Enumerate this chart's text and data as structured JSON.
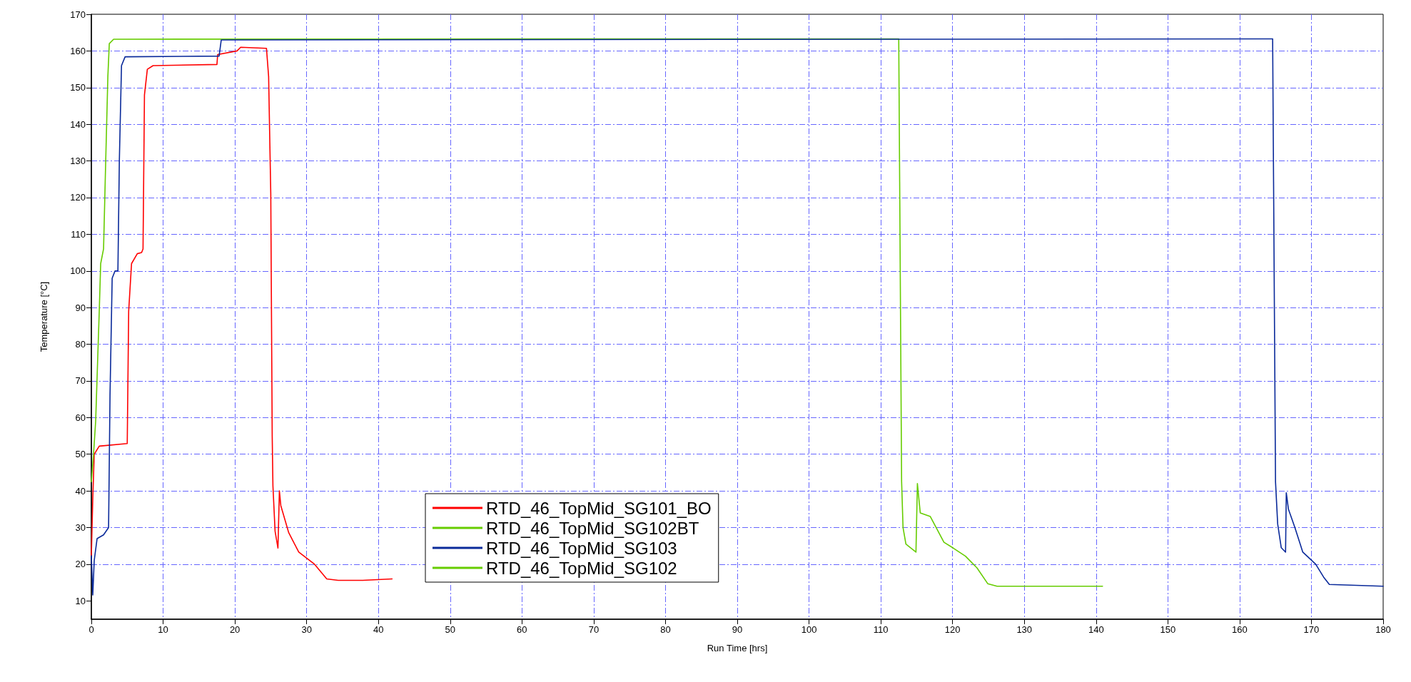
{
  "chart_data": {
    "type": "line",
    "xlabel": "Run Time [hrs]",
    "ylabel": "Temperature [°C]",
    "xlim": [
      0,
      180
    ],
    "xticks": [
      0,
      10,
      20,
      30,
      40,
      50,
      60,
      70,
      80,
      90,
      100,
      110,
      120,
      130,
      140,
      150,
      160,
      170,
      180
    ],
    "ylim": [
      5,
      170
    ],
    "yticks": [
      10,
      20,
      30,
      40,
      50,
      60,
      70,
      80,
      90,
      100,
      110,
      120,
      130,
      140,
      150,
      160,
      170
    ],
    "grid": true,
    "legend": "bottom",
    "marker": "none",
    "line_style": "solid",
    "series": [
      {
        "name": "RTD_46_TopMid_SG101_BO",
        "color": "#ff0000",
        "x": [
          0,
          0.2,
          0.4,
          1.1,
          5,
          5.2,
          5.6,
          6.4,
          7,
          7.2,
          7.4,
          7.8,
          8.6,
          17.5,
          17.6,
          20.3,
          20.8,
          24.4,
          24.7,
          25,
          25.2,
          25.3,
          25.6,
          26,
          26.2,
          26.4,
          27.5,
          28.9,
          31.1,
          32.8,
          34.4,
          37.8,
          41.9
        ],
        "values": [
          22.3,
          38,
          50,
          52.2,
          52.9,
          89,
          102,
          104.7,
          105,
          106,
          148,
          155,
          156,
          156.3,
          159,
          160,
          161,
          160.7,
          153,
          121,
          55,
          41.4,
          29,
          24.4,
          40,
          36,
          28.6,
          23.3,
          20,
          16,
          15.6,
          15.6,
          16
        ]
      },
      {
        "name": "RTD_46_TopMid_SG102BT",
        "color": "#66cc00",
        "x": [
          0,
          0.3,
          0.6,
          1.1,
          1.3,
          1.7,
          2,
          2.3,
          2.5,
          3.1,
          112.5,
          112.9,
          113.1,
          113.5,
          114.9,
          115.1,
          115.5,
          116.9,
          118.8,
          120.1,
          121.8,
          123.4,
          124.9,
          126.2,
          140.9
        ],
        "values": [
          42.5,
          50,
          59,
          89,
          102,
          106,
          130,
          153,
          162,
          163.2,
          163.3,
          42.6,
          30,
          25.5,
          23.3,
          42,
          34,
          33,
          26,
          24.4,
          22.2,
          19,
          14.7,
          14,
          14
        ]
      },
      {
        "name": "RTD_46_TopMid_SG103",
        "color": "#0a2a9a",
        "x": [
          0,
          0.2,
          0.4,
          0.8,
          1.7,
          2.4,
          2.6,
          2.9,
          3.3,
          3.7,
          3.9,
          4.2,
          4.7,
          17.8,
          18.1,
          164.6,
          165,
          165.3,
          165.8,
          166.4,
          166.5,
          166.8,
          167.7,
          168.8,
          170.6,
          171.7,
          172.5,
          180
        ],
        "values": [
          22.3,
          11.6,
          21,
          27,
          28,
          30,
          66,
          98,
          100,
          100,
          130,
          156,
          158.4,
          158.6,
          163,
          163.3,
          42.5,
          31,
          24.5,
          23.3,
          39.5,
          35,
          30,
          23.3,
          20,
          16.5,
          14.5,
          14
        ]
      },
      {
        "name": "RTD_46_TopMid_SG102",
        "color": "#66cc00"
      }
    ]
  }
}
